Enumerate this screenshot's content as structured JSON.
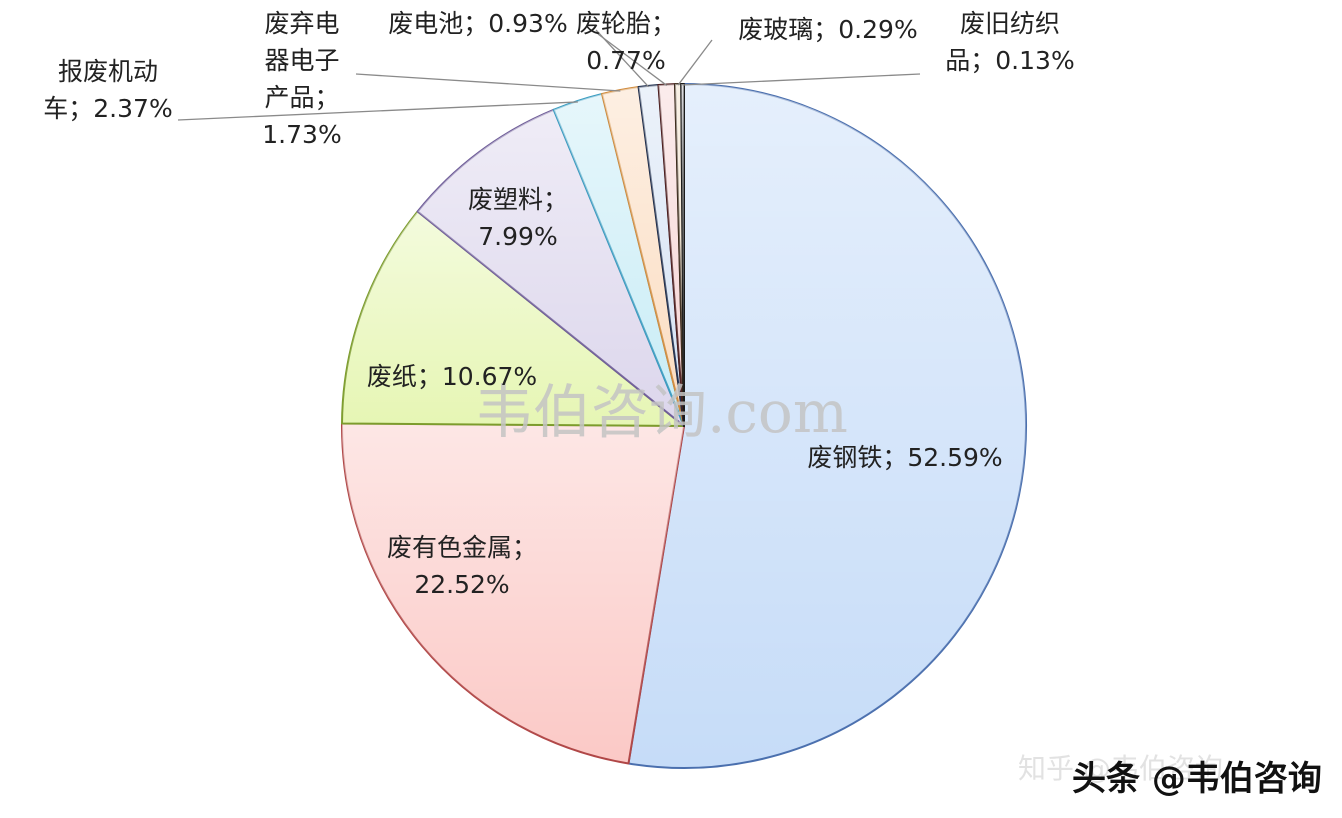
{
  "chart_data": {
    "type": "pie",
    "title": "",
    "slices": [
      {
        "label_lines": [
          "废钢铁；52.59%"
        ],
        "name": "废钢铁",
        "value": 52.59,
        "color": "#c6dcf8",
        "edge": "#4a6fae"
      },
      {
        "label_lines": [
          "废有色金属；",
          "22.52%"
        ],
        "name": "废有色金属",
        "value": 22.52,
        "color": "#fbc9c6",
        "edge": "#b04646"
      },
      {
        "label_lines": [
          "废纸；10.67%"
        ],
        "name": "废纸",
        "value": 10.67,
        "color": "#e6f6b4",
        "edge": "#7c9c2c"
      },
      {
        "label_lines": [
          "废塑料；",
          "7.99%"
        ],
        "name": "废塑料",
        "value": 7.99,
        "color": "#dcd6ec",
        "edge": "#6e5c98"
      },
      {
        "label_lines": [
          "报废机动",
          "车；2.37%"
        ],
        "name": "报废机动车",
        "value": 2.37,
        "color": "#c8ecf6",
        "edge": "#3a9cc0"
      },
      {
        "label_lines": [
          "废弃电",
          "器电子",
          "产品；",
          "1.73%"
        ],
        "name": "废弃电器电子产品",
        "value": 1.73,
        "color": "#fbdcc0",
        "edge": "#d08a3c"
      },
      {
        "label_lines": [
          "废电池；0.93%"
        ],
        "name": "废电池",
        "value": 0.93,
        "color": "#d4e2f4",
        "edge": "#1c2c4c"
      },
      {
        "label_lines": [
          "废轮胎；",
          "0.77%"
        ],
        "name": "废轮胎",
        "value": 0.77,
        "color": "#f6d4d4",
        "edge": "#4c1c1c"
      },
      {
        "label_lines": [
          "废玻璃；0.29%"
        ],
        "name": "废玻璃",
        "value": 0.29,
        "color": "#f0e0c8",
        "edge": "#3c2c1c",
        "label_color": "#cc2b2b"
      },
      {
        "label_lines": [
          "废旧纺织",
          "品；0.13%"
        ],
        "name": "废旧纺织品",
        "value": 0.13,
        "color": "#e8e4f0",
        "edge": "#1a1a1a"
      }
    ]
  },
  "watermark": {
    "center_text": "韦伯咨询.com",
    "zhihu_text": "知乎 @韦伯咨询",
    "toutiao_text": "头条 @韦伯咨询"
  }
}
